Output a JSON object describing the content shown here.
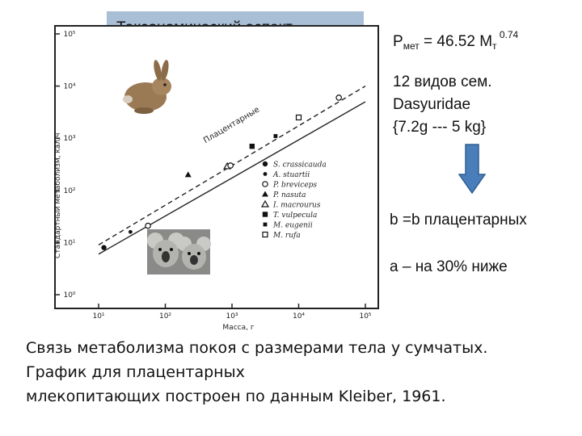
{
  "title": "Таксономический аспект…",
  "formula": {
    "p": "P",
    "p_sub": "мет",
    "eq": " = 46.52 M",
    "m_sub": "т",
    "exp": " 0.74"
  },
  "note": {
    "line1": "12 видов сем.",
    "line2": "Dasyuridae",
    "line3": "{7.2g  ---  5 kg}"
  },
  "colors": {
    "title_bg": "#a9bfd6",
    "arrow": "#4a7ebb",
    "arrow_stroke": "#2f5f8f"
  },
  "icons": {
    "rabbit": "rabbit-photo",
    "koala": "koala-photo",
    "arrow": "down-arrow-icon"
  },
  "statements": {
    "b": "b =b плацентарных",
    "a": "а – на 30% ниже"
  },
  "caption": {
    "line1": "Связь метаболизма покоя с размерами тела у сумчатых.",
    "line2": "График для плацентарных",
    "line3": "млекопитающих построен по данным Kleiber, 1961."
  },
  "chart_data": {
    "type": "scatter",
    "scale": "log-log",
    "xlabel": "Масса, г",
    "ylabel": "Стандартный метаболизм, кал/ч",
    "x_ticks": [
      "10¹",
      "10²",
      "10³",
      "10⁴",
      "10⁵"
    ],
    "y_ticks": [
      "10⁰",
      "10¹",
      "10²",
      "10³",
      "10⁴",
      "10⁵"
    ],
    "xlim": [
      10,
      100000
    ],
    "ylim": [
      1,
      100000
    ],
    "line_label": "Плацентарные",
    "legend": [
      {
        "name": "S. crassicauda",
        "marker": "filled-circle"
      },
      {
        "name": "A. stuartii",
        "marker": "filled-small-circle"
      },
      {
        "name": "P. breviceps",
        "marker": "open-circle"
      },
      {
        "name": "P. nasuta",
        "marker": "filled-triangle"
      },
      {
        "name": "I. macrourus",
        "marker": "open-triangle"
      },
      {
        "name": "T. vulpecula",
        "marker": "filled-square"
      },
      {
        "name": "M. eugenii",
        "marker": "filled-square-small"
      },
      {
        "name": "M. rufa",
        "marker": "open-square"
      }
    ],
    "points": [
      {
        "species": "S. crassicauda",
        "x": 12,
        "y": 8
      },
      {
        "species": "A. stuartii",
        "x": 30,
        "y": 16
      },
      {
        "species": "P. breviceps",
        "x": 55,
        "y": 21
      },
      {
        "species": "P. nasuta",
        "x": 220,
        "y": 200
      },
      {
        "species": "I. macrourus",
        "x": 850,
        "y": 290
      },
      {
        "species": "P. breviceps",
        "x": 950,
        "y": 300
      },
      {
        "species": "T. vulpecula",
        "x": 2000,
        "y": 700
      },
      {
        "species": "M. eugenii",
        "x": 4500,
        "y": 1100
      },
      {
        "species": "M. rufa",
        "x": 10000,
        "y": 2500
      },
      {
        "species": "P. breviceps",
        "x": 40000,
        "y": 6000
      }
    ],
    "lines": [
      {
        "name": "placental",
        "style": "dashed",
        "from": [
          10,
          9
        ],
        "to": [
          100000,
          10000
        ]
      },
      {
        "name": "marsupial",
        "style": "solid",
        "from": [
          10,
          6
        ],
        "to": [
          100000,
          5000
        ]
      }
    ]
  }
}
